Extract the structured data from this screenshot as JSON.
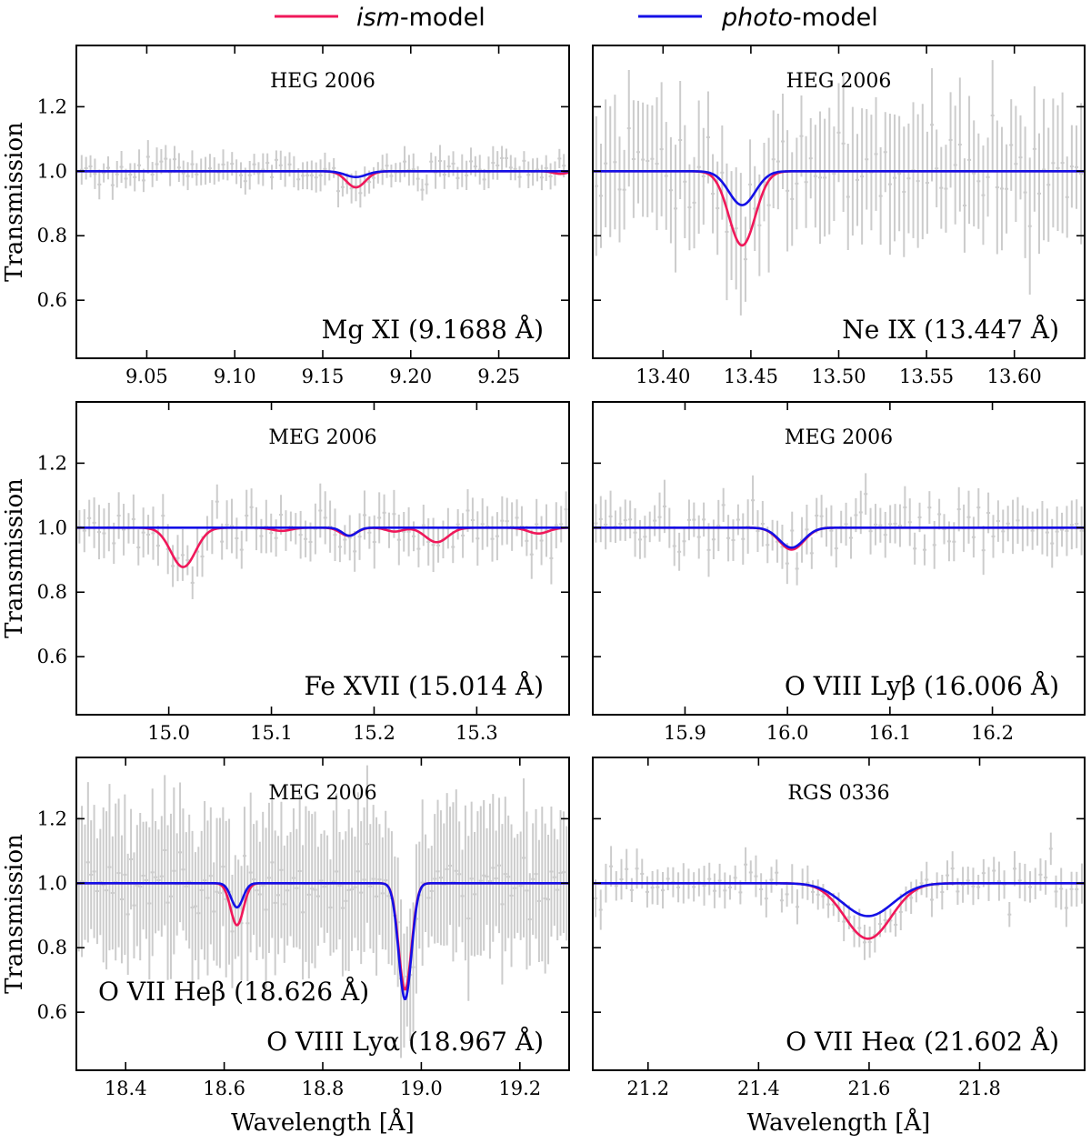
{
  "legend": {
    "ism_italic": "ism",
    "ism_suffix": "-model",
    "photo_italic": "photo",
    "photo_suffix": "-model"
  },
  "colors": {
    "ism": "#f0185a",
    "photo": "#1410e6",
    "data": "#cccccc",
    "frame": "#000000"
  },
  "chart_data": [
    {
      "type": "line",
      "title": "HEG 2006",
      "annotation": "Mg XI (9.1688 Å)",
      "xlabel": "",
      "ylabel": "Transmission",
      "xlim": [
        9.01,
        9.29
      ],
      "ylim": [
        0.42,
        1.39
      ],
      "xticks": [
        9.05,
        9.1,
        9.15,
        9.2,
        9.25
      ],
      "xtick_labels": [
        "9.05",
        "9.10",
        "9.15",
        "9.20",
        "9.25"
      ],
      "yticks": [
        0.6,
        0.8,
        1.0,
        1.2
      ],
      "ytick_labels": [
        "0.6",
        "0.8",
        "1.0",
        "1.2"
      ],
      "series": [
        {
          "name": "ism-model",
          "baseline": 1.0,
          "lines": [
            {
              "center": 9.1688,
              "depth": 0.05,
              "sigma": 0.0055
            },
            {
              "center": 9.285,
              "depth": 0.008,
              "sigma": 0.004
            }
          ]
        },
        {
          "name": "photo-model",
          "baseline": 1.0,
          "lines": [
            {
              "center": 9.1688,
              "depth": 0.018,
              "sigma": 0.006
            }
          ]
        }
      ],
      "data_points": {
        "x_range": [
          9.013,
          9.287
        ],
        "n": 110,
        "center": 1.0,
        "scatter": 0.035,
        "err": 0.04
      }
    },
    {
      "type": "line",
      "title": "HEG 2006",
      "annotation": "Ne IX (13.447 Å)",
      "xlabel": "",
      "ylabel": "",
      "xlim": [
        13.36,
        13.64
      ],
      "ylim": [
        0.42,
        1.39
      ],
      "xticks": [
        13.4,
        13.45,
        13.5,
        13.55,
        13.6
      ],
      "xtick_labels": [
        "13.40",
        "13.45",
        "13.50",
        "13.55",
        "13.60"
      ],
      "yticks": [
        0.6,
        0.8,
        1.0,
        1.2
      ],
      "ytick_labels": [
        "",
        "",
        "",
        ""
      ],
      "series": [
        {
          "name": "ism-model",
          "baseline": 1.0,
          "lines": [
            {
              "center": 13.445,
              "depth": 0.23,
              "sigma": 0.0075
            }
          ]
        },
        {
          "name": "photo-model",
          "baseline": 1.0,
          "lines": [
            {
              "center": 13.445,
              "depth": 0.105,
              "sigma": 0.0075
            }
          ]
        }
      ],
      "data_points": {
        "x_range": [
          13.362,
          13.638
        ],
        "n": 105,
        "center": 1.0,
        "scatter": 0.12,
        "err": 0.17
      }
    },
    {
      "type": "line",
      "title": "MEG 2006",
      "annotation": "Fe XVII (15.014 Å)",
      "xlabel": "",
      "ylabel": "Transmission",
      "xlim": [
        14.91,
        15.39
      ],
      "ylim": [
        0.42,
        1.39
      ],
      "xticks": [
        15.0,
        15.1,
        15.2,
        15.3
      ],
      "xtick_labels": [
        "15.0",
        "15.1",
        "15.2",
        "15.3"
      ],
      "yticks": [
        0.6,
        0.8,
        1.0,
        1.2
      ],
      "ytick_labels": [
        "0.6",
        "0.8",
        "1.0",
        "1.2"
      ],
      "series": [
        {
          "name": "ism-model",
          "baseline": 1.0,
          "lines": [
            {
              "center": 15.014,
              "depth": 0.122,
              "sigma": 0.012
            },
            {
              "center": 15.175,
              "depth": 0.025,
              "sigma": 0.008
            },
            {
              "center": 15.261,
              "depth": 0.045,
              "sigma": 0.011
            },
            {
              "center": 15.11,
              "depth": 0.01,
              "sigma": 0.009
            },
            {
              "center": 15.22,
              "depth": 0.012,
              "sigma": 0.008
            },
            {
              "center": 15.36,
              "depth": 0.018,
              "sigma": 0.01
            }
          ]
        },
        {
          "name": "photo-model",
          "baseline": 1.0,
          "lines": [
            {
              "center": 15.176,
              "depth": 0.025,
              "sigma": 0.007
            }
          ]
        }
      ],
      "data_points": {
        "x_range": [
          14.913,
          15.387
        ],
        "n": 100,
        "center": 1.0,
        "scatter": 0.06,
        "err": 0.065
      }
    },
    {
      "type": "line",
      "title": "MEG 2006",
      "annotation": "O VIII Lyβ (16.006 Å)",
      "xlabel": "",
      "ylabel": "",
      "xlim": [
        15.81,
        16.29
      ],
      "ylim": [
        0.42,
        1.39
      ],
      "xticks": [
        15.9,
        16.0,
        16.1,
        16.2
      ],
      "xtick_labels": [
        "15.9",
        "16.0",
        "16.1",
        "16.2"
      ],
      "yticks": [
        0.6,
        0.8,
        1.0,
        1.2
      ],
      "ytick_labels": [
        "",
        "",
        "",
        ""
      ],
      "series": [
        {
          "name": "ism-model",
          "baseline": 1.0,
          "lines": [
            {
              "center": 16.004,
              "depth": 0.068,
              "sigma": 0.012
            }
          ]
        },
        {
          "name": "photo-model",
          "baseline": 1.0,
          "lines": [
            {
              "center": 16.004,
              "depth": 0.062,
              "sigma": 0.012
            }
          ]
        }
      ],
      "data_points": {
        "x_range": [
          15.813,
          16.287
        ],
        "n": 100,
        "center": 1.0,
        "scatter": 0.065,
        "err": 0.065
      }
    },
    {
      "type": "line",
      "title": "MEG 2006",
      "annotation": "O VIII Lyα (18.967 Å)",
      "annotation2": "O VII Heβ (18.626 Å)",
      "xlabel": "Wavelength  [Å]",
      "ylabel": "Transmission",
      "xlim": [
        18.3,
        19.3
      ],
      "ylim": [
        0.42,
        1.39
      ],
      "xticks": [
        18.4,
        18.6,
        18.8,
        19.0,
        19.2
      ],
      "xtick_labels": [
        "18.4",
        "18.6",
        "18.8",
        "19.0",
        "19.2"
      ],
      "yticks": [
        0.6,
        0.8,
        1.0,
        1.2
      ],
      "ytick_labels": [
        "0.6",
        "0.8",
        "1.0",
        "1.2"
      ],
      "series": [
        {
          "name": "ism-model",
          "baseline": 1.0,
          "lines": [
            {
              "center": 18.626,
              "depth": 0.13,
              "sigma": 0.013
            },
            {
              "center": 18.967,
              "depth": 0.33,
              "sigma": 0.013
            }
          ]
        },
        {
          "name": "photo-model",
          "baseline": 1.0,
          "lines": [
            {
              "center": 18.626,
              "depth": 0.075,
              "sigma": 0.012
            },
            {
              "center": 18.967,
              "depth": 0.36,
              "sigma": 0.013
            }
          ]
        }
      ],
      "data_points": {
        "x_range": [
          18.305,
          19.295
        ],
        "n": 160,
        "center": 1.0,
        "scatter": 0.08,
        "err": 0.2
      }
    },
    {
      "type": "line",
      "title": "RGS 0336",
      "annotation": "O VII Heα (21.602 Å)",
      "xlabel": "Wavelength  [Å]",
      "ylabel": "",
      "xlim": [
        21.1,
        21.99
      ],
      "ylim": [
        0.42,
        1.39
      ],
      "xticks": [
        21.2,
        21.4,
        21.6,
        21.8
      ],
      "xtick_labels": [
        "21.2",
        "21.4",
        "21.6",
        "21.8"
      ],
      "yticks": [
        0.6,
        0.8,
        1.0,
        1.2
      ],
      "ytick_labels": [
        "",
        "",
        "",
        ""
      ],
      "series": [
        {
          "name": "ism-model",
          "baseline": 1.0,
          "lines": [
            {
              "center": 21.598,
              "depth": 0.172,
              "sigma": 0.042
            }
          ]
        },
        {
          "name": "photo-model",
          "baseline": 1.0,
          "lines": [
            {
              "center": 21.598,
              "depth": 0.102,
              "sigma": 0.045
            }
          ]
        }
      ],
      "data_points": {
        "x_range": [
          21.105,
          21.985
        ],
        "n": 95,
        "center": 1.0,
        "scatter": 0.05,
        "err": 0.05
      }
    }
  ]
}
